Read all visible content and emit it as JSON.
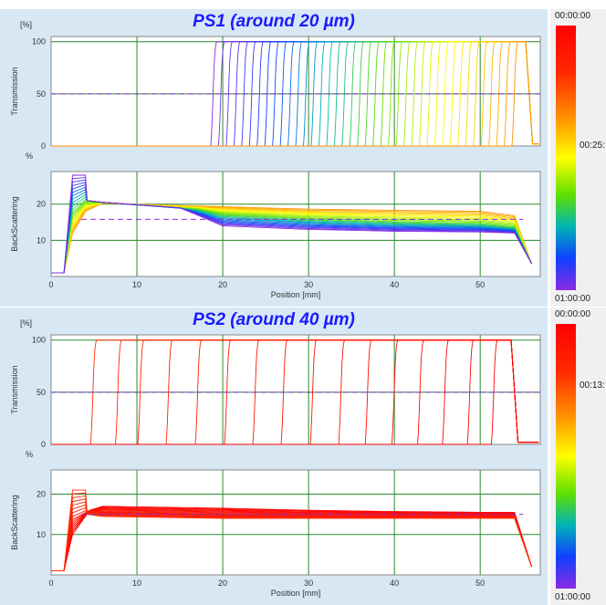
{
  "panels": [
    {
      "title": "PS1 (around 20 µm)",
      "colorbar": {
        "top": "00:00:00",
        "middle": "00:25:",
        "bottom": "01:00:00"
      },
      "transmission": {
        "unit": "[%]",
        "ylabel": "Transmission",
        "yticks": [
          0,
          50,
          100
        ],
        "ref_level": 50
      },
      "backscattering": {
        "unit": "%",
        "ylabel": "BackScattering",
        "yticks": [
          10,
          20
        ],
        "ref_level": 15.8
      },
      "xlabel": "Position [mm]",
      "xticks": [
        0,
        10,
        20,
        30,
        40,
        50
      ]
    },
    {
      "title": "PS2 (around 40 µm)",
      "colorbar": {
        "top": "00:00:00",
        "middle": "00:13:",
        "bottom": "01:00:00"
      },
      "transmission": {
        "unit": "[%]",
        "ylabel": "Transmission",
        "yticks": [
          0,
          50,
          100
        ],
        "ref_level": 50
      },
      "backscattering": {
        "unit": "%",
        "ylabel": "BackScattering",
        "yticks": [
          10,
          20
        ],
        "ref_level": 15
      },
      "xlabel": "Position [mm]",
      "xticks": [
        0,
        10,
        20,
        30,
        40,
        50
      ]
    }
  ],
  "chart_data": [
    {
      "type": "line",
      "name": "PS1 Transmission",
      "xlim": [
        0,
        57
      ],
      "ylim": [
        0,
        105
      ],
      "front_positions_mm": [
        18.6,
        19.5,
        20.4,
        21.3,
        22.2,
        23.1,
        24.0,
        24.9,
        25.8,
        26.7,
        27.6,
        28.5,
        29.4,
        30.3,
        31.2,
        32.1,
        33.0,
        33.9,
        34.8,
        35.7,
        36.6,
        37.5,
        38.4,
        39.3,
        40.2,
        41.1,
        42.0,
        42.9,
        43.8,
        44.7,
        45.6,
        46.5,
        47.4,
        48.3,
        49.2,
        50.1,
        51.0,
        51.9,
        52.8,
        53.7
      ],
      "plateau": 100,
      "top_edge_mm": 55.3
    },
    {
      "type": "line",
      "name": "PS1 BackScattering",
      "xlim": [
        0,
        57
      ],
      "ylim": [
        0,
        29
      ],
      "curves": [
        {
          "t": 0,
          "points": [
            [
              0,
              1
            ],
            [
              1.5,
              1
            ],
            [
              2.5,
              12
            ],
            [
              4,
              18
            ],
            [
              6,
              20.2
            ],
            [
              20,
              19.3
            ],
            [
              30,
              18.6
            ],
            [
              40,
              18.3
            ],
            [
              50,
              18
            ],
            [
              54,
              16.8
            ],
            [
              56,
              3.5
            ]
          ]
        },
        {
          "t": 0.5,
          "points": [
            [
              0,
              1
            ],
            [
              1.5,
              1
            ],
            [
              2.5,
              18
            ],
            [
              4,
              21
            ],
            [
              6,
              20.5
            ],
            [
              17,
              18.5
            ],
            [
              20,
              17
            ],
            [
              30,
              15.8
            ],
            [
              40,
              15
            ],
            [
              50,
              14.5
            ],
            [
              54,
              13.5
            ],
            [
              56,
              3.5
            ]
          ]
        },
        {
          "t": 1,
          "points": [
            [
              0,
              1
            ],
            [
              1.5,
              1
            ],
            [
              2.5,
              28
            ],
            [
              4,
              28
            ],
            [
              4.2,
              21
            ],
            [
              6,
              20.5
            ],
            [
              15,
              19
            ],
            [
              20,
              14
            ],
            [
              30,
              13
            ],
            [
              40,
              12.5
            ],
            [
              50,
              12.3
            ],
            [
              54,
              12
            ],
            [
              56,
              3.5
            ]
          ]
        }
      ]
    },
    {
      "type": "line",
      "name": "PS2 Transmission",
      "xlim": [
        0,
        57
      ],
      "ylim": [
        0,
        105
      ],
      "front_positions_mm": [
        4.6,
        7.5,
        10.1,
        13.4,
        16.8,
        20.2,
        23.5,
        26.8,
        30.2,
        33.5,
        36.6,
        39.7,
        42.7,
        45.6,
        48.5,
        51.3
      ],
      "plateau": 100,
      "top_edge_mm": 53.6
    },
    {
      "type": "line",
      "name": "PS2 BackScattering",
      "xlim": [
        0,
        57
      ],
      "ylim": [
        0,
        26
      ],
      "curves": [
        {
          "t": 0,
          "points": [
            [
              0,
              1
            ],
            [
              1.5,
              1
            ],
            [
              2.5,
              10
            ],
            [
              4.5,
              16
            ],
            [
              6,
              17
            ],
            [
              20,
              16.5
            ],
            [
              30,
              16
            ],
            [
              40,
              15.7
            ],
            [
              50,
              15.5
            ],
            [
              54,
              15.5
            ],
            [
              56,
              2
            ]
          ]
        },
        {
          "t": 0.5,
          "points": [
            [
              0,
              1
            ],
            [
              1.5,
              1
            ],
            [
              2.5,
              14
            ],
            [
              4.5,
              16
            ],
            [
              6,
              15.5
            ],
            [
              20,
              15
            ],
            [
              30,
              14.8
            ],
            [
              40,
              14.5
            ],
            [
              50,
              14.5
            ],
            [
              54,
              14.5
            ],
            [
              56,
              2
            ]
          ]
        },
        {
          "t": 1,
          "points": [
            [
              0,
              1
            ],
            [
              1.5,
              1
            ],
            [
              2.5,
              21
            ],
            [
              4,
              21
            ],
            [
              4.2,
              15
            ],
            [
              6,
              14.5
            ],
            [
              20,
              14
            ],
            [
              30,
              14
            ],
            [
              40,
              14
            ],
            [
              50,
              14
            ],
            [
              54,
              14
            ],
            [
              56,
              2
            ]
          ]
        }
      ]
    }
  ]
}
